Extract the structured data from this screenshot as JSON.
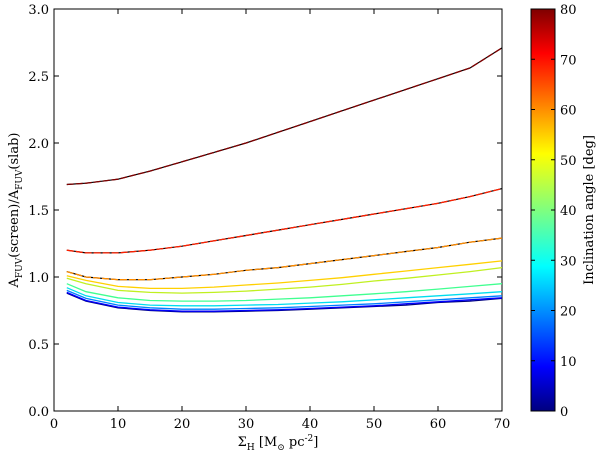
{
  "chart_data": {
    "type": "line",
    "xlabel": "Σ_H [M_⊙ pc^{-2}]",
    "ylabel": "A_FUV(screen)/A_FUV(slab)",
    "xlim": [
      0,
      70
    ],
    "ylim": [
      0.0,
      3.0
    ],
    "xticks": [
      "0",
      "10",
      "20",
      "30",
      "40",
      "50",
      "60",
      "70"
    ],
    "yticks": [
      "0.0",
      "0.5",
      "1.0",
      "1.5",
      "2.0",
      "2.5",
      "3.0"
    ],
    "grid": false,
    "colorbar": {
      "label": "Inclination angle [deg]",
      "range": [
        0,
        80
      ],
      "ticks": [
        "0",
        "10",
        "20",
        "30",
        "40",
        "50",
        "60",
        "70",
        "80"
      ],
      "colormap": "jet"
    },
    "x": [
      2,
      5,
      10,
      15,
      20,
      25,
      30,
      35,
      40,
      45,
      50,
      55,
      60,
      65,
      70
    ],
    "series": [
      {
        "color": "#00007f",
        "dashed": false,
        "values": [
          0.88,
          0.82,
          0.77,
          0.75,
          0.74,
          0.74,
          0.745,
          0.75,
          0.76,
          0.77,
          0.78,
          0.79,
          0.81,
          0.82,
          0.84
        ]
      },
      {
        "color": "#0000ff",
        "dashed": false,
        "values": [
          0.885,
          0.825,
          0.775,
          0.755,
          0.745,
          0.745,
          0.75,
          0.755,
          0.765,
          0.775,
          0.785,
          0.8,
          0.815,
          0.83,
          0.845
        ]
      },
      {
        "color": "#0080ff",
        "dashed": false,
        "values": [
          0.9,
          0.84,
          0.79,
          0.77,
          0.76,
          0.76,
          0.765,
          0.77,
          0.78,
          0.79,
          0.8,
          0.815,
          0.83,
          0.845,
          0.86
        ]
      },
      {
        "color": "#00ddee",
        "dashed": false,
        "values": [
          0.92,
          0.86,
          0.81,
          0.79,
          0.785,
          0.785,
          0.79,
          0.795,
          0.805,
          0.815,
          0.83,
          0.845,
          0.86,
          0.875,
          0.89
        ]
      },
      {
        "color": "#40ff90",
        "dashed": false,
        "values": [
          0.95,
          0.89,
          0.845,
          0.825,
          0.82,
          0.82,
          0.825,
          0.835,
          0.845,
          0.86,
          0.875,
          0.89,
          0.91,
          0.93,
          0.95
        ]
      },
      {
        "color": "#c0f020",
        "dashed": false,
        "values": [
          0.99,
          0.95,
          0.9,
          0.885,
          0.88,
          0.885,
          0.895,
          0.91,
          0.925,
          0.945,
          0.97,
          0.99,
          1.015,
          1.04,
          1.07
        ]
      },
      {
        "color": "#ffd000",
        "dashed": false,
        "values": [
          1.01,
          0.975,
          0.93,
          0.915,
          0.915,
          0.925,
          0.94,
          0.955,
          0.975,
          0.995,
          1.02,
          1.045,
          1.07,
          1.095,
          1.12
        ]
      },
      {
        "color": "#ff8c00",
        "dashed": true,
        "values": [
          1.04,
          1.0,
          0.98,
          0.98,
          1.0,
          1.02,
          1.05,
          1.07,
          1.1,
          1.13,
          1.16,
          1.19,
          1.22,
          1.26,
          1.29
        ]
      },
      {
        "color": "#ff2000",
        "dashed": true,
        "values": [
          1.2,
          1.18,
          1.18,
          1.2,
          1.23,
          1.27,
          1.31,
          1.35,
          1.39,
          1.43,
          1.47,
          1.51,
          1.55,
          1.6,
          1.66
        ]
      },
      {
        "color": "#800000",
        "dashed": true,
        "values": [
          1.69,
          1.7,
          1.73,
          1.79,
          1.86,
          1.93,
          2.0,
          2.08,
          2.16,
          2.24,
          2.32,
          2.4,
          2.48,
          2.56,
          2.71
        ]
      }
    ]
  }
}
